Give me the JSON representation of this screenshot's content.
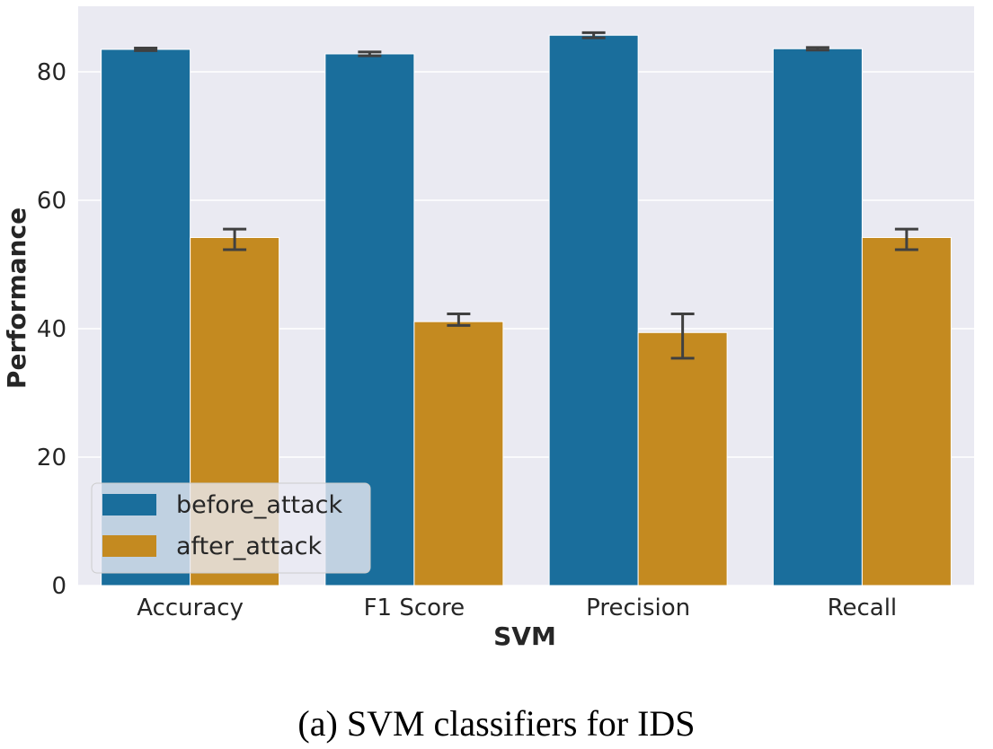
{
  "chart_data": {
    "type": "bar",
    "xlabel": "SVM",
    "ylabel": "Performance",
    "categories": [
      "Accuracy",
      "F1 Score",
      "Precision",
      "Recall"
    ],
    "series": [
      {
        "name": "before_attack",
        "color": "#1a6e9c",
        "values": [
          83.5,
          82.8,
          85.7,
          83.6
        ],
        "errors": [
          [
            83.3,
            83.7
          ],
          [
            82.5,
            83.1
          ],
          [
            85.3,
            86.1
          ],
          [
            83.4,
            83.8
          ]
        ]
      },
      {
        "name": "after_attack",
        "color": "#c48a20",
        "values": [
          54.2,
          41.1,
          39.4,
          54.2
        ],
        "errors": [
          [
            52.3,
            55.5
          ],
          [
            40.5,
            42.3
          ],
          [
            35.4,
            42.3
          ],
          [
            52.3,
            55.5
          ]
        ]
      }
    ],
    "ylim": [
      0,
      90
    ],
    "yticks": [
      0,
      20,
      40,
      60,
      80
    ],
    "grid": true,
    "legend_position": "lower-left",
    "background": "#eaeaf2"
  },
  "caption": "(a) SVM classifiers for IDS"
}
